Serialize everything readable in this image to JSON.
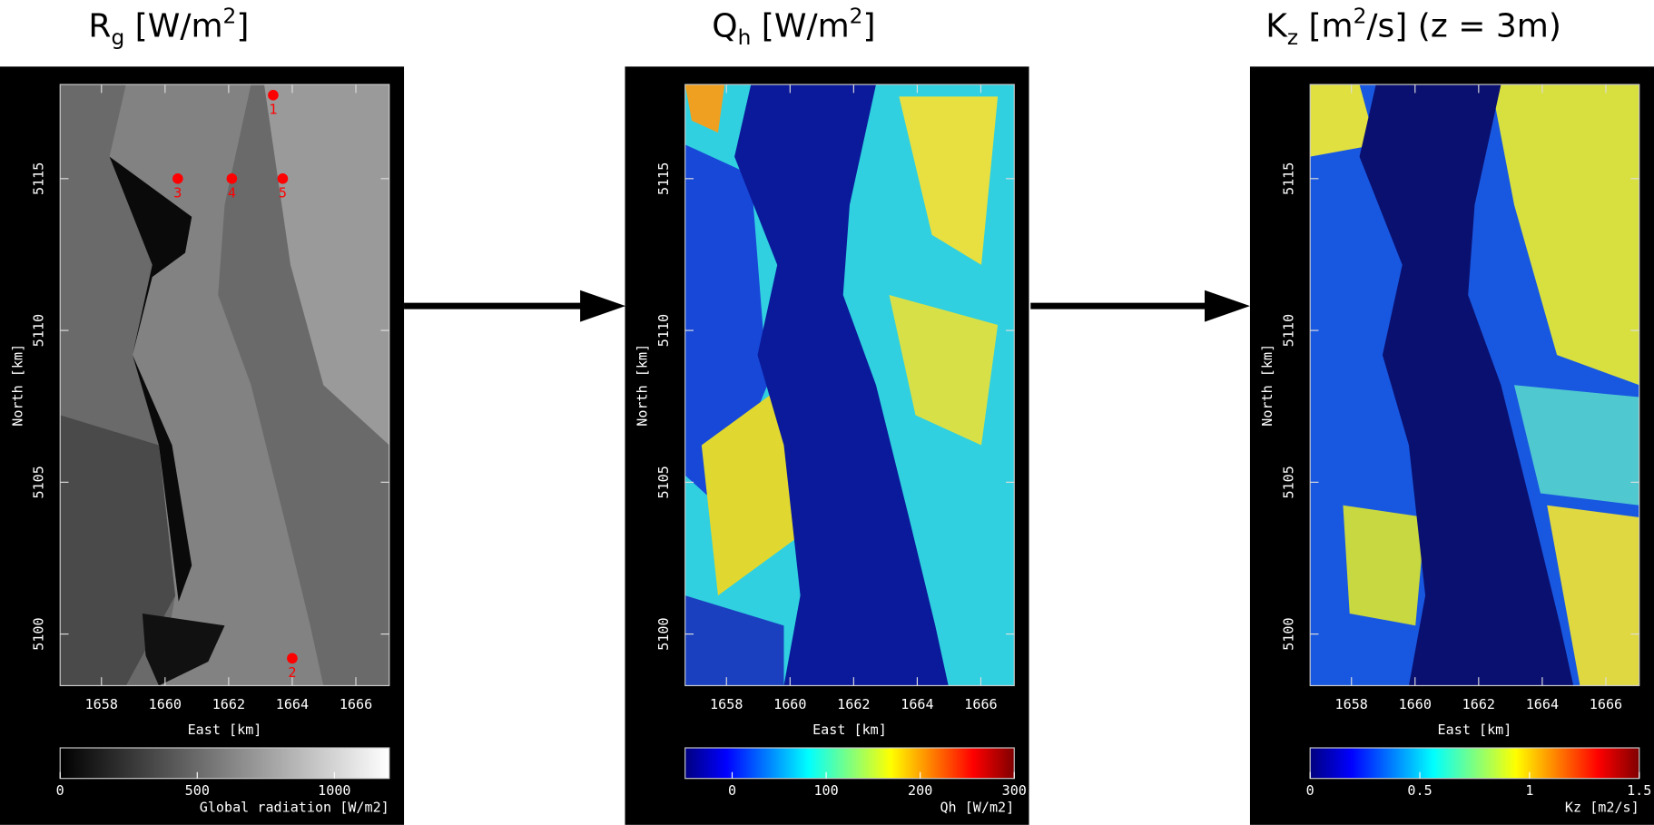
{
  "chart_data": [
    {
      "type": "map",
      "title": [
        {
          "text": "R"
        },
        {
          "text": "g",
          "style": "sub"
        },
        {
          "text": " [W/m"
        },
        {
          "text": "2",
          "style": "sup"
        },
        {
          "text": "]"
        }
      ],
      "xlabel": "East [km]",
      "ylabel": "North [km]",
      "xlim": [
        1656.7,
        1667.05
      ],
      "ylim": [
        5098.3,
        5118.1
      ],
      "xticks": [
        1658,
        1660,
        1662,
        1664,
        1666
      ],
      "yticks": [
        5100,
        5105,
        5110,
        5115
      ],
      "colorbar": {
        "label": "Global radiation [W/m2]",
        "lim": [
          0,
          1200
        ],
        "ticks": [
          0,
          500,
          1000
        ],
        "colormap": "gray"
      },
      "points": {
        "labels": [
          "1",
          "2",
          "3",
          "4",
          "5"
        ],
        "x": [
          1663.4,
          1664.0,
          1660.4,
          1662.1,
          1663.7
        ],
        "y": [
          5117.75,
          5099.2,
          5115.0,
          5115.0,
          5115.0
        ],
        "color": "#ff0000"
      }
    },
    {
      "type": "map",
      "title": [
        {
          "text": "Q"
        },
        {
          "text": "h",
          "style": "sub"
        },
        {
          "text": " [W/m"
        },
        {
          "text": "2",
          "style": "sup"
        },
        {
          "text": "]"
        }
      ],
      "xlabel": "East [km]",
      "ylabel": "North [km]",
      "xlim": [
        1656.7,
        1667.05
      ],
      "ylim": [
        5098.3,
        5118.1
      ],
      "xticks": [
        1658,
        1660,
        1662,
        1664,
        1666
      ],
      "yticks": [
        5100,
        5105,
        5110,
        5115
      ],
      "colorbar": {
        "label": "Qh [W/m2]",
        "lim": [
          -50,
          300
        ],
        "ticks": [
          0,
          100,
          200,
          300
        ],
        "colormap": "jet"
      }
    },
    {
      "type": "map",
      "title": [
        {
          "text": "K"
        },
        {
          "text": "z",
          "style": "sub"
        },
        {
          "text": " [m"
        },
        {
          "text": "2",
          "style": "sup"
        },
        {
          "text": "/s] (z = 3m)"
        }
      ],
      "xlabel": "East [km]",
      "ylabel": "North [km]",
      "xlim": [
        1656.7,
        1667.05
      ],
      "ylim": [
        5098.3,
        5118.1
      ],
      "xticks": [
        1658,
        1660,
        1662,
        1664,
        1666
      ],
      "yticks": [
        5100,
        5105,
        5110,
        5115
      ],
      "colorbar": {
        "label": "Kz [m2/s]",
        "lim": [
          0,
          1.5
        ],
        "ticks": [
          0,
          0.5,
          1,
          1.5
        ],
        "colormap": "jet"
      }
    }
  ]
}
